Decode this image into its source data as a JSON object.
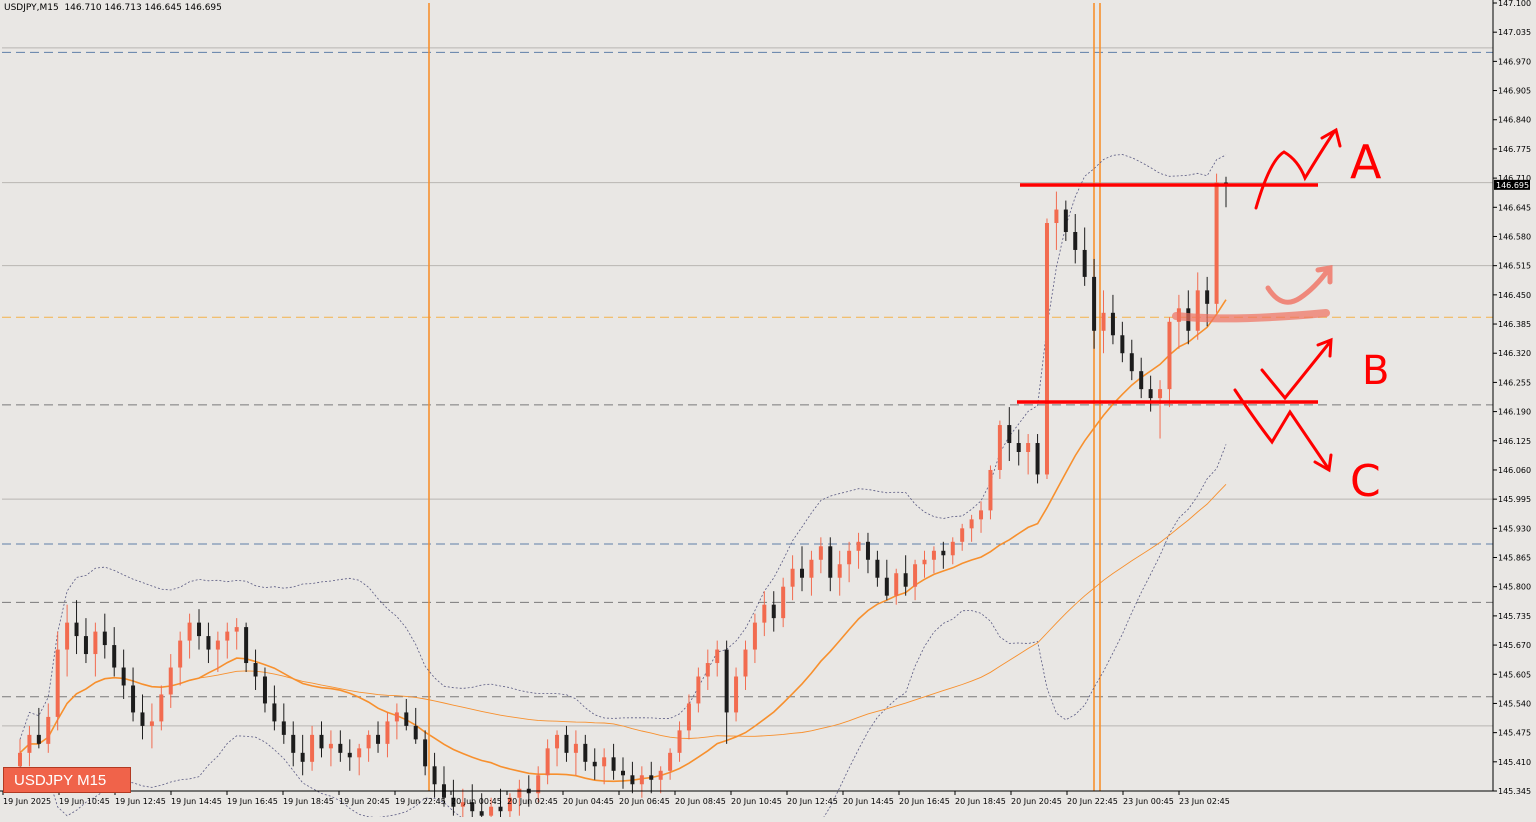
{
  "header": {
    "symbol_tf": "USDJPY,M15",
    "ohlc": "146.710 146.713 146.645 146.695"
  },
  "badge": {
    "label": "USDJPY M15"
  },
  "annotations": {
    "a": "A",
    "b": "B",
    "c": "C"
  },
  "colors": {
    "background": "#e9e7e4",
    "bull_candle": "#f26b4f",
    "bear_candle": "#1c1c1c",
    "ma": "#f7902e",
    "bands": "#5a5a82",
    "drawing": "#ff0000",
    "orange_level": "#f4b24a",
    "blue_dash": "#5f7fa8",
    "gray_dash": "#7a7a7a"
  },
  "chart_data": {
    "type": "candlestick",
    "symbol": "USDJPY",
    "timeframe": "M15",
    "y_ticks": [
      "147.100",
      "147.035",
      "146.970",
      "146.905",
      "146.840",
      "146.775",
      "146.710",
      "146.645",
      "146.580",
      "146.515",
      "146.450",
      "146.385",
      "146.320",
      "146.255",
      "146.190",
      "146.125",
      "146.060",
      "145.995",
      "145.930",
      "145.865",
      "145.800",
      "145.735",
      "145.670",
      "145.605",
      "145.540",
      "145.475",
      "145.410",
      "145.345"
    ],
    "ylim": [
      145.345,
      147.1
    ],
    "x_ticks": [
      "19 Jun 2025",
      "19 Jun 10:45",
      "19 Jun 12:45",
      "19 Jun 14:45",
      "19 Jun 16:45",
      "19 Jun 18:45",
      "19 Jun 20:45",
      "19 Jun 22:45",
      "20 Jun 00:45",
      "20 Jun 02:45",
      "20 Jun 04:45",
      "20 Jun 06:45",
      "20 Jun 08:45",
      "20 Jun 10:45",
      "20 Jun 12:45",
      "20 Jun 14:45",
      "20 Jun 16:45",
      "20 Jun 18:45",
      "20 Jun 20:45",
      "20 Jun 22:45",
      "23 Jun 00:45",
      "23 Jun 02:45"
    ],
    "current_price": "146.695",
    "horizontal_levels": [
      {
        "price": 146.99,
        "style": "blue-dash"
      },
      {
        "price": 147.0,
        "style": "gray-solid"
      },
      {
        "price": 146.7,
        "style": "gray-solid"
      },
      {
        "price": 146.515,
        "style": "gray-solid"
      },
      {
        "price": 146.4,
        "style": "orange-dash"
      },
      {
        "price": 146.205,
        "style": "gray-dash"
      },
      {
        "price": 145.995,
        "style": "gray-solid"
      },
      {
        "price": 145.895,
        "style": "blue-dash"
      },
      {
        "price": 145.765,
        "style": "gray-dash"
      },
      {
        "price": 145.555,
        "style": "gray-dash"
      },
      {
        "price": 145.49,
        "style": "gray-solid"
      }
    ],
    "vertical_markers": [
      "19 Jun 22:45",
      "20 Jun 22:45"
    ],
    "candles": [
      {
        "o": 145.4,
        "h": 145.46,
        "l": 145.36,
        "c": 145.43
      },
      {
        "o": 145.43,
        "h": 145.49,
        "l": 145.4,
        "c": 145.47
      },
      {
        "o": 145.47,
        "h": 145.53,
        "l": 145.44,
        "c": 145.45
      },
      {
        "o": 145.45,
        "h": 145.54,
        "l": 145.43,
        "c": 145.51
      },
      {
        "o": 145.51,
        "h": 145.7,
        "l": 145.48,
        "c": 145.66
      },
      {
        "o": 145.66,
        "h": 145.76,
        "l": 145.6,
        "c": 145.72
      },
      {
        "o": 145.72,
        "h": 145.77,
        "l": 145.65,
        "c": 145.69
      },
      {
        "o": 145.69,
        "h": 145.73,
        "l": 145.63,
        "c": 145.65
      },
      {
        "o": 145.65,
        "h": 145.72,
        "l": 145.6,
        "c": 145.7
      },
      {
        "o": 145.7,
        "h": 145.74,
        "l": 145.64,
        "c": 145.67
      },
      {
        "o": 145.67,
        "h": 145.71,
        "l": 145.6,
        "c": 145.62
      },
      {
        "o": 145.62,
        "h": 145.66,
        "l": 145.55,
        "c": 145.58
      },
      {
        "o": 145.58,
        "h": 145.62,
        "l": 145.5,
        "c": 145.52
      },
      {
        "o": 145.52,
        "h": 145.56,
        "l": 145.46,
        "c": 145.49
      },
      {
        "o": 145.49,
        "h": 145.54,
        "l": 145.44,
        "c": 145.5
      },
      {
        "o": 145.5,
        "h": 145.58,
        "l": 145.48,
        "c": 145.56
      },
      {
        "o": 145.56,
        "h": 145.65,
        "l": 145.53,
        "c": 145.62
      },
      {
        "o": 145.62,
        "h": 145.7,
        "l": 145.58,
        "c": 145.68
      },
      {
        "o": 145.68,
        "h": 145.74,
        "l": 145.64,
        "c": 145.72
      },
      {
        "o": 145.72,
        "h": 145.75,
        "l": 145.66,
        "c": 145.69
      },
      {
        "o": 145.69,
        "h": 145.72,
        "l": 145.63,
        "c": 145.66
      },
      {
        "o": 145.66,
        "h": 145.7,
        "l": 145.61,
        "c": 145.68
      },
      {
        "o": 145.68,
        "h": 145.72,
        "l": 145.64,
        "c": 145.7
      },
      {
        "o": 145.7,
        "h": 145.73,
        "l": 145.66,
        "c": 145.71
      },
      {
        "o": 145.71,
        "h": 145.72,
        "l": 145.61,
        "c": 145.63
      },
      {
        "o": 145.63,
        "h": 145.66,
        "l": 145.57,
        "c": 145.6
      },
      {
        "o": 145.6,
        "h": 145.62,
        "l": 145.52,
        "c": 145.54
      },
      {
        "o": 145.54,
        "h": 145.58,
        "l": 145.48,
        "c": 145.5
      },
      {
        "o": 145.5,
        "h": 145.54,
        "l": 145.45,
        "c": 145.47
      },
      {
        "o": 145.47,
        "h": 145.5,
        "l": 145.4,
        "c": 145.43
      },
      {
        "o": 145.43,
        "h": 145.47,
        "l": 145.38,
        "c": 145.41
      },
      {
        "o": 145.41,
        "h": 145.49,
        "l": 145.39,
        "c": 145.47
      },
      {
        "o": 145.47,
        "h": 145.5,
        "l": 145.42,
        "c": 145.44
      },
      {
        "o": 145.44,
        "h": 145.48,
        "l": 145.4,
        "c": 145.45
      },
      {
        "o": 145.45,
        "h": 145.48,
        "l": 145.41,
        "c": 145.43
      },
      {
        "o": 145.43,
        "h": 145.46,
        "l": 145.39,
        "c": 145.42
      },
      {
        "o": 145.42,
        "h": 145.45,
        "l": 145.38,
        "c": 145.44
      },
      {
        "o": 145.44,
        "h": 145.48,
        "l": 145.41,
        "c": 145.47
      },
      {
        "o": 145.47,
        "h": 145.5,
        "l": 145.43,
        "c": 145.45
      },
      {
        "o": 145.45,
        "h": 145.52,
        "l": 145.42,
        "c": 145.5
      },
      {
        "o": 145.5,
        "h": 145.54,
        "l": 145.46,
        "c": 145.52
      },
      {
        "o": 145.52,
        "h": 145.55,
        "l": 145.48,
        "c": 145.49
      },
      {
        "o": 145.49,
        "h": 145.53,
        "l": 145.45,
        "c": 145.46
      },
      {
        "o": 145.46,
        "h": 145.48,
        "l": 145.38,
        "c": 145.4
      },
      {
        "o": 145.4,
        "h": 145.43,
        "l": 145.33,
        "c": 145.36
      },
      {
        "o": 145.36,
        "h": 145.4,
        "l": 145.31,
        "c": 145.33
      },
      {
        "o": 145.33,
        "h": 145.37,
        "l": 145.29,
        "c": 145.31
      },
      {
        "o": 145.31,
        "h": 145.35,
        "l": 145.27,
        "c": 145.32
      },
      {
        "o": 145.32,
        "h": 145.36,
        "l": 145.28,
        "c": 145.3
      },
      {
        "o": 145.3,
        "h": 145.34,
        "l": 145.26,
        "c": 145.29
      },
      {
        "o": 145.29,
        "h": 145.33,
        "l": 145.25,
        "c": 145.31
      },
      {
        "o": 145.31,
        "h": 145.35,
        "l": 145.27,
        "c": 145.3
      },
      {
        "o": 145.3,
        "h": 145.34,
        "l": 145.26,
        "c": 145.33
      },
      {
        "o": 145.33,
        "h": 145.37,
        "l": 145.29,
        "c": 145.35
      },
      {
        "o": 145.35,
        "h": 145.38,
        "l": 145.31,
        "c": 145.34
      },
      {
        "o": 145.34,
        "h": 145.4,
        "l": 145.32,
        "c": 145.38
      },
      {
        "o": 145.38,
        "h": 145.46,
        "l": 145.36,
        "c": 145.44
      },
      {
        "o": 145.44,
        "h": 145.48,
        "l": 145.4,
        "c": 145.47
      },
      {
        "o": 145.47,
        "h": 145.49,
        "l": 145.41,
        "c": 145.43
      },
      {
        "o": 145.43,
        "h": 145.48,
        "l": 145.38,
        "c": 145.45
      },
      {
        "o": 145.45,
        "h": 145.47,
        "l": 145.39,
        "c": 145.41
      },
      {
        "o": 145.41,
        "h": 145.44,
        "l": 145.37,
        "c": 145.4
      },
      {
        "o": 145.4,
        "h": 145.44,
        "l": 145.36,
        "c": 145.42
      },
      {
        "o": 145.42,
        "h": 145.45,
        "l": 145.37,
        "c": 145.39
      },
      {
        "o": 145.39,
        "h": 145.42,
        "l": 145.35,
        "c": 145.38
      },
      {
        "o": 145.38,
        "h": 145.41,
        "l": 145.34,
        "c": 145.36
      },
      {
        "o": 145.36,
        "h": 145.4,
        "l": 145.33,
        "c": 145.38
      },
      {
        "o": 145.38,
        "h": 145.41,
        "l": 145.34,
        "c": 145.37
      },
      {
        "o": 145.37,
        "h": 145.4,
        "l": 145.34,
        "c": 145.39
      },
      {
        "o": 145.39,
        "h": 145.44,
        "l": 145.37,
        "c": 145.43
      },
      {
        "o": 145.43,
        "h": 145.5,
        "l": 145.41,
        "c": 145.48
      },
      {
        "o": 145.48,
        "h": 145.56,
        "l": 145.46,
        "c": 145.54
      },
      {
        "o": 145.54,
        "h": 145.62,
        "l": 145.52,
        "c": 145.6
      },
      {
        "o": 145.6,
        "h": 145.66,
        "l": 145.57,
        "c": 145.63
      },
      {
        "o": 145.63,
        "h": 145.68,
        "l": 145.6,
        "c": 145.66
      },
      {
        "o": 145.66,
        "h": 145.68,
        "l": 145.45,
        "c": 145.52
      },
      {
        "o": 145.52,
        "h": 145.62,
        "l": 145.5,
        "c": 145.6
      },
      {
        "o": 145.6,
        "h": 145.68,
        "l": 145.57,
        "c": 145.66
      },
      {
        "o": 145.66,
        "h": 145.74,
        "l": 145.63,
        "c": 145.72
      },
      {
        "o": 145.72,
        "h": 145.79,
        "l": 145.69,
        "c": 145.76
      },
      {
        "o": 145.76,
        "h": 145.79,
        "l": 145.7,
        "c": 145.73
      },
      {
        "o": 145.73,
        "h": 145.82,
        "l": 145.71,
        "c": 145.8
      },
      {
        "o": 145.8,
        "h": 145.87,
        "l": 145.77,
        "c": 145.84
      },
      {
        "o": 145.84,
        "h": 145.89,
        "l": 145.79,
        "c": 145.82
      },
      {
        "o": 145.82,
        "h": 145.88,
        "l": 145.78,
        "c": 145.86
      },
      {
        "o": 145.86,
        "h": 145.91,
        "l": 145.83,
        "c": 145.89
      },
      {
        "o": 145.89,
        "h": 145.91,
        "l": 145.79,
        "c": 145.82
      },
      {
        "o": 145.82,
        "h": 145.88,
        "l": 145.78,
        "c": 145.85
      },
      {
        "o": 145.85,
        "h": 145.9,
        "l": 145.81,
        "c": 145.88
      },
      {
        "o": 145.88,
        "h": 145.92,
        "l": 145.84,
        "c": 145.9
      },
      {
        "o": 145.9,
        "h": 145.92,
        "l": 145.83,
        "c": 145.86
      },
      {
        "o": 145.86,
        "h": 145.88,
        "l": 145.8,
        "c": 145.82
      },
      {
        "o": 145.82,
        "h": 145.86,
        "l": 145.77,
        "c": 145.78
      },
      {
        "o": 145.78,
        "h": 145.84,
        "l": 145.76,
        "c": 145.83
      },
      {
        "o": 145.83,
        "h": 145.87,
        "l": 145.78,
        "c": 145.8
      },
      {
        "o": 145.8,
        "h": 145.86,
        "l": 145.77,
        "c": 145.85
      },
      {
        "o": 145.85,
        "h": 145.88,
        "l": 145.82,
        "c": 145.86
      },
      {
        "o": 145.86,
        "h": 145.89,
        "l": 145.83,
        "c": 145.88
      },
      {
        "o": 145.88,
        "h": 145.9,
        "l": 145.84,
        "c": 145.87
      },
      {
        "o": 145.87,
        "h": 145.91,
        "l": 145.85,
        "c": 145.9
      },
      {
        "o": 145.9,
        "h": 145.94,
        "l": 145.88,
        "c": 145.93
      },
      {
        "o": 145.93,
        "h": 145.96,
        "l": 145.9,
        "c": 145.95
      },
      {
        "o": 145.95,
        "h": 145.99,
        "l": 145.92,
        "c": 145.97
      },
      {
        "o": 145.97,
        "h": 146.07,
        "l": 145.95,
        "c": 146.06
      },
      {
        "o": 146.06,
        "h": 146.17,
        "l": 146.04,
        "c": 146.16
      },
      {
        "o": 146.16,
        "h": 146.2,
        "l": 146.08,
        "c": 146.12
      },
      {
        "o": 146.12,
        "h": 146.15,
        "l": 146.07,
        "c": 146.1
      },
      {
        "o": 146.1,
        "h": 146.14,
        "l": 146.05,
        "c": 146.12
      },
      {
        "o": 146.12,
        "h": 146.14,
        "l": 146.03,
        "c": 146.05
      },
      {
        "o": 146.05,
        "h": 146.62,
        "l": 146.04,
        "c": 146.61
      },
      {
        "o": 146.61,
        "h": 146.68,
        "l": 146.55,
        "c": 146.64
      },
      {
        "o": 146.64,
        "h": 146.66,
        "l": 146.57,
        "c": 146.59
      },
      {
        "o": 146.59,
        "h": 146.63,
        "l": 146.52,
        "c": 146.55
      },
      {
        "o": 146.55,
        "h": 146.6,
        "l": 146.47,
        "c": 146.49
      },
      {
        "o": 146.49,
        "h": 146.53,
        "l": 146.33,
        "c": 146.37
      },
      {
        "o": 146.37,
        "h": 146.46,
        "l": 146.32,
        "c": 146.41
      },
      {
        "o": 146.41,
        "h": 146.45,
        "l": 146.34,
        "c": 146.36
      },
      {
        "o": 146.36,
        "h": 146.39,
        "l": 146.3,
        "c": 146.32
      },
      {
        "o": 146.32,
        "h": 146.35,
        "l": 146.26,
        "c": 146.28
      },
      {
        "o": 146.28,
        "h": 146.31,
        "l": 146.22,
        "c": 146.24
      },
      {
        "o": 146.24,
        "h": 146.27,
        "l": 146.19,
        "c": 146.22
      },
      {
        "o": 146.22,
        "h": 146.26,
        "l": 146.13,
        "c": 146.24
      },
      {
        "o": 146.24,
        "h": 146.4,
        "l": 146.2,
        "c": 146.39
      },
      {
        "o": 146.39,
        "h": 146.45,
        "l": 146.33,
        "c": 146.42
      },
      {
        "o": 146.42,
        "h": 146.46,
        "l": 146.34,
        "c": 146.37
      },
      {
        "o": 146.37,
        "h": 146.5,
        "l": 146.35,
        "c": 146.46
      },
      {
        "o": 146.46,
        "h": 146.49,
        "l": 146.38,
        "c": 146.43
      },
      {
        "o": 146.43,
        "h": 146.72,
        "l": 146.41,
        "c": 146.7
      },
      {
        "o": 146.7,
        "h": 146.713,
        "l": 146.645,
        "c": 146.695
      }
    ],
    "indicators": {
      "moving_averages": [
        "MA fast (orange)",
        "MA slow (orange thin)"
      ],
      "bollinger_bands": true
    }
  }
}
